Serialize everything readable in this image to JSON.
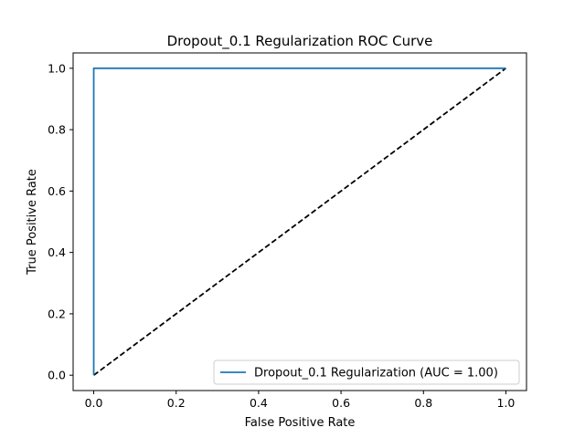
{
  "chart_data": {
    "type": "line",
    "title": "Dropout_0.1 Regularization ROC Curve",
    "xlabel": "False Positive Rate",
    "ylabel": "True Positive Rate",
    "xlim": [
      -0.05,
      1.05
    ],
    "ylim": [
      -0.05,
      1.05
    ],
    "xticks": [
      0.0,
      0.2,
      0.4,
      0.6,
      0.8,
      1.0
    ],
    "yticks": [
      0.0,
      0.2,
      0.4,
      0.6,
      0.8,
      1.0
    ],
    "xtick_labels": [
      "0.0",
      "0.2",
      "0.4",
      "0.6",
      "0.8",
      "1.0"
    ],
    "ytick_labels": [
      "0.0",
      "0.2",
      "0.4",
      "0.6",
      "0.8",
      "1.0"
    ],
    "grid": false,
    "legend_position": "lower-right",
    "series": [
      {
        "name": "Dropout_0.1 Regularization (AUC = 1.00)",
        "color": "#1f77b4",
        "style": "solid",
        "x": [
          0.0,
          0.0,
          0.0,
          0.002,
          1.0
        ],
        "y": [
          0.0,
          0.97,
          1.0,
          1.0,
          1.0
        ]
      },
      {
        "color": "#000000",
        "style": "dashed",
        "x": [
          0.0,
          1.0
        ],
        "y": [
          0.0,
          1.0
        ]
      }
    ]
  }
}
